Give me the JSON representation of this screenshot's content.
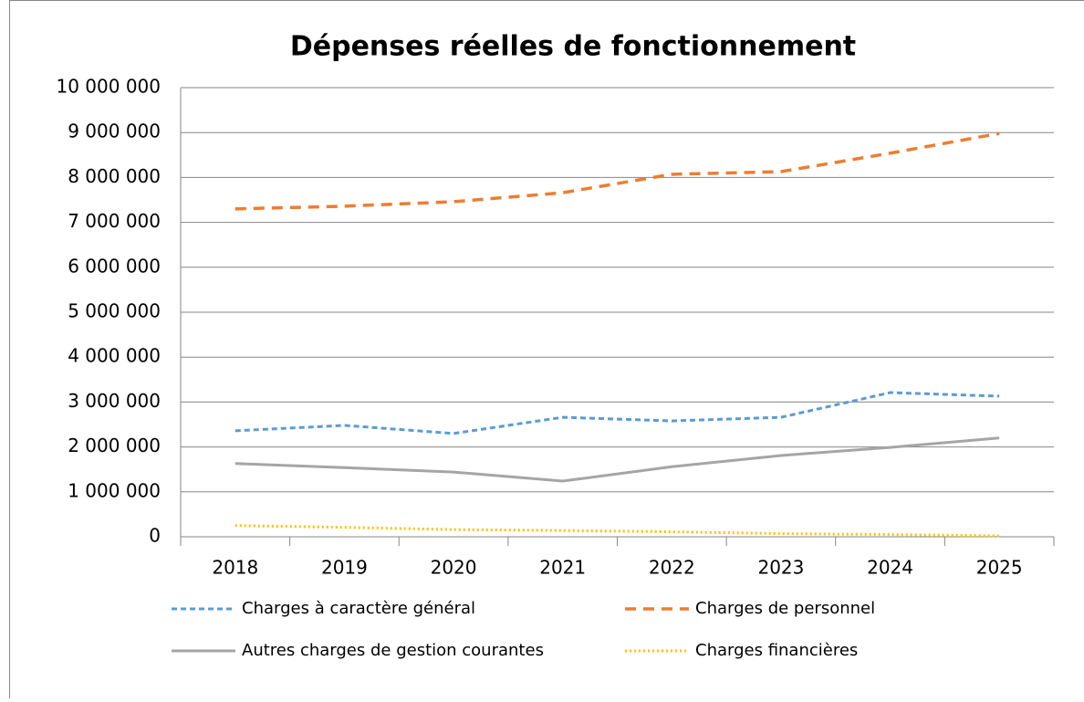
{
  "chart_data": {
    "type": "line",
    "title": "Dépenses réelles de fonctionnement",
    "categories": [
      "2018",
      "2019",
      "2020",
      "2021",
      "2022",
      "2023",
      "2024",
      "2025"
    ],
    "series": [
      {
        "name": "Charges à caractère général",
        "color": "#5b9bd5",
        "dash": "6,4",
        "values": [
          2360000,
          2480000,
          2300000,
          2660000,
          2580000,
          2660000,
          3210000,
          3130000
        ]
      },
      {
        "name": "Charges de personnel",
        "color": "#ed7d31",
        "dash": "12,8",
        "values": [
          7300000,
          7360000,
          7460000,
          7660000,
          8070000,
          8130000,
          8540000,
          8980000
        ]
      },
      {
        "name": "Autres charges de gestion courantes",
        "color": "#a5a5a5",
        "dash": "none",
        "values": [
          1630000,
          1540000,
          1440000,
          1240000,
          1560000,
          1810000,
          1990000,
          2200000
        ]
      },
      {
        "name": "Charges financières",
        "color": "#ffc000",
        "dash": "2,3",
        "values": [
          250000,
          210000,
          160000,
          140000,
          110000,
          70000,
          50000,
          20000
        ]
      }
    ],
    "ylim": [
      0,
      10000000
    ],
    "yticks": [
      0,
      {
        "value": 1000000,
        "label": "1 000 000"
      },
      {
        "value": 2000000,
        "label": "2 000 000"
      },
      {
        "value": 3000000,
        "label": "3 000 000"
      },
      {
        "value": 4000000,
        "label": "4 000 000"
      },
      {
        "value": 5000000,
        "label": "5 000 000"
      },
      {
        "value": 6000000,
        "label": "6 000 000"
      },
      {
        "value": 7000000,
        "label": "7 000 000"
      },
      {
        "value": 8000000,
        "label": "8 000 000"
      },
      {
        "value": 9000000,
        "label": "9 000 000"
      },
      {
        "value": 10000000,
        "label": "10 000 000"
      }
    ],
    "grid": true,
    "legend": "bottom"
  }
}
